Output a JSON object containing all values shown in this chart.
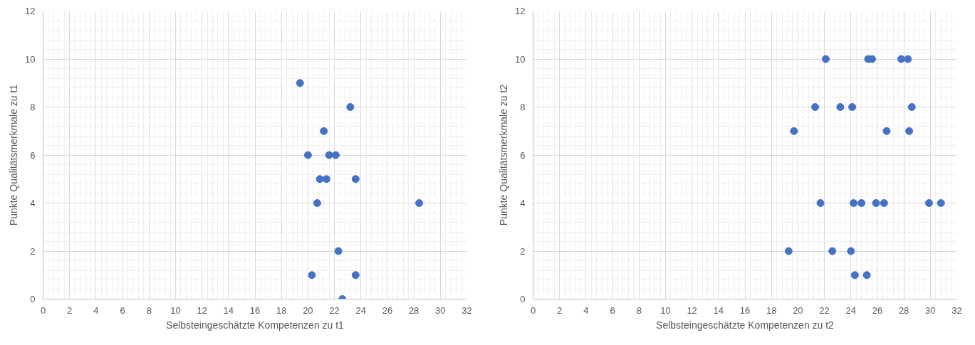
{
  "chart_data": [
    {
      "type": "scatter",
      "xlabel": "Selbsteingeschätzte Kompetenzen zu t1",
      "ylabel": "Punkte Qualitätsmerkmale zu t1",
      "marker": "circle",
      "grid": true,
      "xlim": [
        0,
        32
      ],
      "xticks": [
        0,
        2,
        4,
        6,
        8,
        10,
        12,
        14,
        16,
        18,
        20,
        22,
        24,
        26,
        28,
        30,
        32
      ],
      "ylim": [
        0,
        12
      ],
      "yticks": [
        0,
        2,
        4,
        6,
        8,
        10,
        12
      ],
      "series": [
        {
          "color": "#4472c4",
          "x": [
            19.4,
            23.2,
            21.2,
            20.0,
            21.6,
            22.1,
            20.9,
            21.4,
            23.6,
            20.7,
            28.4,
            22.3,
            20.3,
            23.6,
            22.6
          ],
          "values": [
            9,
            8,
            7,
            6,
            6,
            6,
            5,
            5,
            5,
            4,
            4,
            2,
            1,
            1,
            0
          ]
        }
      ]
    },
    {
      "type": "scatter",
      "xlabel": "Selbsteingeschätzte Kompetenzen zu t2",
      "ylabel": "Punkte Qualitätsmerkmale zu t2",
      "marker": "circle",
      "grid": true,
      "xlim": [
        0,
        32
      ],
      "xticks": [
        0,
        2,
        4,
        6,
        8,
        10,
        12,
        14,
        16,
        18,
        20,
        22,
        24,
        26,
        28,
        30,
        32
      ],
      "ylim": [
        0,
        12
      ],
      "yticks": [
        0,
        2,
        4,
        6,
        8,
        10,
        12
      ],
      "series": [
        {
          "color": "#4472c4",
          "x": [
            22.1,
            25.3,
            25.6,
            27.8,
            28.3,
            21.3,
            23.2,
            24.1,
            28.6,
            19.7,
            26.7,
            28.4,
            21.7,
            24.2,
            24.8,
            25.9,
            26.5,
            29.9,
            30.8,
            19.3,
            22.6,
            24.0,
            24.3,
            25.2
          ],
          "values": [
            10,
            10,
            10,
            10,
            10,
            8,
            8,
            8,
            8,
            7,
            7,
            7,
            4,
            4,
            4,
            4,
            4,
            4,
            4,
            2,
            2,
            2,
            1,
            1
          ]
        }
      ]
    }
  ]
}
